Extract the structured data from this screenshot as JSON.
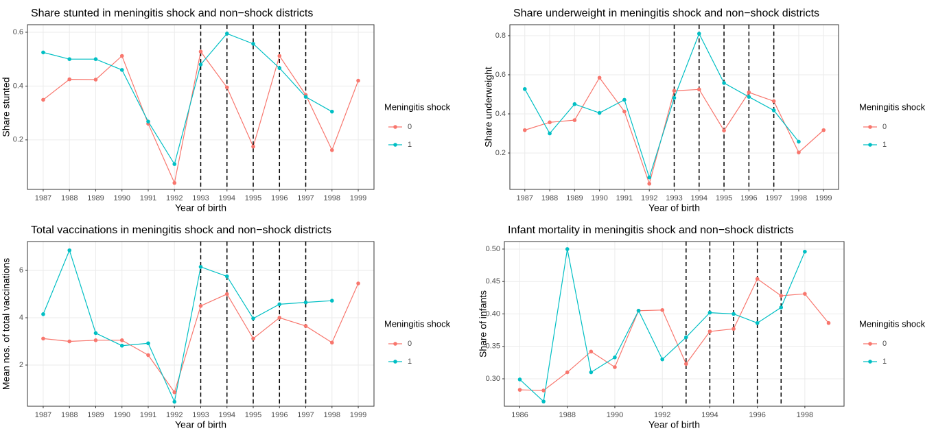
{
  "chart_data": [
    {
      "type": "line",
      "title": "Share stunted in meningitis shock and non−shock districts",
      "xlabel": "Year of birth",
      "ylabel": "Share stunted",
      "legend_title": "Meningitis shock",
      "grid": true,
      "x": [
        1987,
        1988,
        1989,
        1990,
        1991,
        1992,
        1993,
        1994,
        1995,
        1996,
        1997,
        1998,
        1999
      ],
      "series": [
        {
          "name": "0",
          "color": "#F8766D",
          "values": [
            0.349,
            0.425,
            0.424,
            0.512,
            0.26,
            0.04,
            0.528,
            0.395,
            0.175,
            0.512,
            0.367,
            0.162,
            0.42
          ]
        },
        {
          "name": "1",
          "color": "#00BFC4",
          "values": [
            0.525,
            0.5,
            0.5,
            0.46,
            0.268,
            0.11,
            0.48,
            0.595,
            0.557,
            0.467,
            0.36,
            0.305,
            null
          ]
        }
      ],
      "vlines": [
        1993,
        1994,
        1995,
        1996,
        1997
      ],
      "xlim": [
        1986.4,
        1999.6
      ],
      "ylim": [
        0.016,
        0.628
      ],
      "xticks": [
        1987,
        1988,
        1989,
        1990,
        1991,
        1992,
        1993,
        1994,
        1995,
        1996,
        1997,
        1998,
        1999
      ],
      "yticks": [
        0.2,
        0.4,
        0.6
      ]
    },
    {
      "type": "line",
      "title": "Share underweight in meningitis shock and non−shock districts",
      "xlabel": "Year of birth",
      "ylabel": "Share underweight",
      "legend_title": "Meningitis shock",
      "grid": true,
      "x": [
        1987,
        1988,
        1989,
        1990,
        1991,
        1992,
        1993,
        1994,
        1995,
        1996,
        1997,
        1998,
        1999
      ],
      "series": [
        {
          "name": "0",
          "color": "#F8766D",
          "values": [
            0.317,
            0.357,
            0.368,
            0.585,
            0.412,
            0.043,
            0.518,
            0.525,
            0.315,
            0.51,
            0.465,
            0.203,
            0.317
          ]
        },
        {
          "name": "1",
          "color": "#00BFC4",
          "values": [
            0.527,
            0.3,
            0.45,
            0.405,
            0.472,
            0.075,
            0.482,
            0.81,
            0.558,
            0.487,
            0.418,
            0.258,
            null
          ]
        }
      ],
      "vlines": [
        1993,
        1994,
        1995,
        1996,
        1997
      ],
      "xlim": [
        1986.4,
        1999.6
      ],
      "ylim": [
        0.014,
        0.856
      ],
      "xticks": [
        1987,
        1988,
        1989,
        1990,
        1991,
        1992,
        1993,
        1994,
        1995,
        1996,
        1997,
        1998,
        1999
      ],
      "yticks": [
        0.2,
        0.4,
        0.6,
        0.8
      ]
    },
    {
      "type": "line",
      "title": "Total vaccinations in meningitis shock and non−shock districts",
      "xlabel": "Year of birth",
      "ylabel": "Mean nos. of total vaccinations",
      "legend_title": "Meningitis shock",
      "grid": true,
      "x": [
        1987,
        1988,
        1989,
        1990,
        1991,
        1992,
        1993,
        1994,
        1995,
        1996,
        1997,
        1998,
        1999
      ],
      "series": [
        {
          "name": "0",
          "color": "#F8766D",
          "values": [
            3.12,
            3.0,
            3.05,
            3.05,
            2.42,
            0.85,
            4.5,
            5.0,
            3.12,
            4.0,
            3.65,
            2.95,
            5.45
          ]
        },
        {
          "name": "1",
          "color": "#00BFC4",
          "values": [
            4.15,
            6.85,
            3.35,
            2.82,
            2.92,
            0.45,
            6.15,
            5.75,
            3.97,
            4.57,
            4.65,
            4.72,
            null
          ]
        }
      ],
      "vlines": [
        1993,
        1994,
        1995,
        1996,
        1997
      ],
      "xlim": [
        1986.4,
        1999.6
      ],
      "ylim": [
        0.26,
        7.22
      ],
      "xticks": [
        1987,
        1988,
        1989,
        1990,
        1991,
        1992,
        1993,
        1994,
        1995,
        1996,
        1997,
        1998,
        1999
      ],
      "yticks": [
        2,
        4,
        6
      ]
    },
    {
      "type": "line",
      "title": "Infant mortality in meningitis shock and non−shock districts",
      "xlabel": "Year of birth",
      "ylabel": "Share of infants",
      "legend_title": "Meningitis shock",
      "grid": true,
      "x": [
        1986,
        1987,
        1988,
        1989,
        1990,
        1991,
        1992,
        1993,
        1994,
        1995,
        1996,
        1997,
        1998,
        1999
      ],
      "series": [
        {
          "name": "0",
          "color": "#F8766D",
          "values": [
            0.283,
            0.282,
            0.31,
            0.342,
            0.318,
            0.405,
            0.406,
            0.323,
            0.373,
            0.377,
            0.454,
            0.428,
            0.431,
            0.386
          ]
        },
        {
          "name": "1",
          "color": "#00BFC4",
          "values": [
            0.299,
            0.265,
            0.5,
            0.31,
            0.333,
            0.405,
            0.33,
            0.364,
            0.402,
            0.4,
            0.386,
            0.41,
            0.496,
            null
          ]
        }
      ],
      "vlines": [
        1993,
        1994,
        1995,
        1996,
        1997
      ],
      "xlim": [
        1985.35,
        1999.65
      ],
      "ylim": [
        0.2577,
        0.5116
      ],
      "xticks": [
        1986,
        1988,
        1990,
        1992,
        1994,
        1996,
        1998
      ],
      "yticks": [
        {
          "value": 0.3,
          "label": "0.30"
        },
        0.35,
        {
          "value": 0.4,
          "label": "0.40"
        },
        0.45,
        {
          "value": 0.5,
          "label": "0.50"
        }
      ]
    }
  ]
}
